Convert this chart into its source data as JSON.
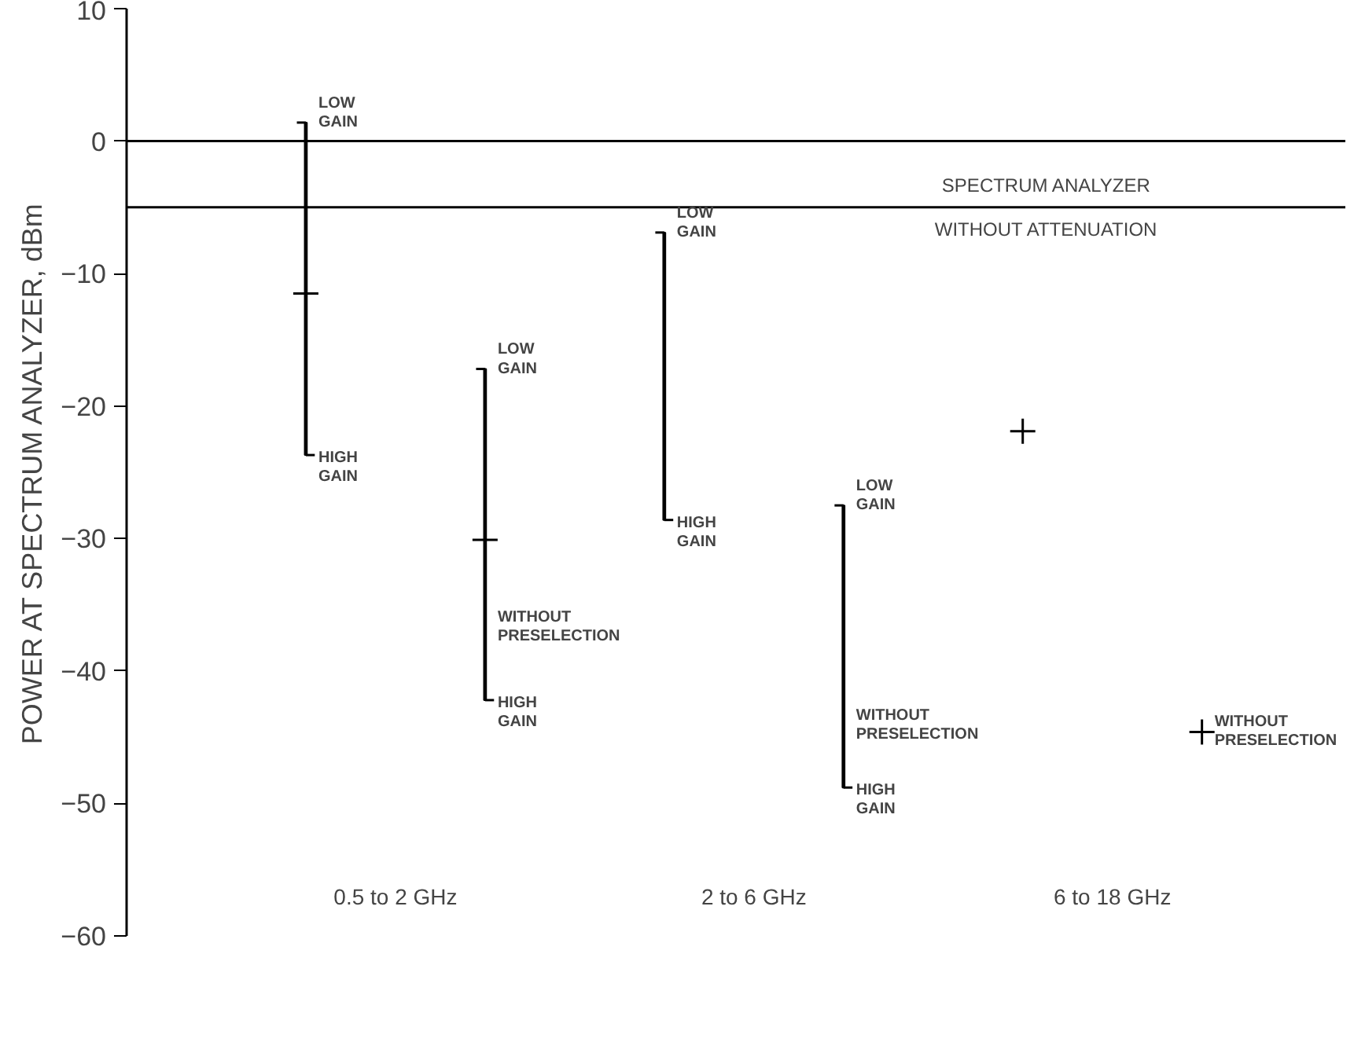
{
  "chart_data": {
    "type": "bar",
    "ylabel": "POWER AT SPECTRUM ANALYZER, dBm",
    "categories": [
      null,
      null,
      null,
      null,
      null,
      null
    ],
    "series": [
      {
        "color": "#000000",
        "base": [
          -23.7,
          null,
          -28.6,
          null,
          null,
          null
        ],
        "values": [
          25.1,
          null,
          21.7,
          null,
          null,
          null
        ]
      },
      {
        "name": "WITHOUT\nPRESELECTION",
        "color": "#000000",
        "base": [
          null,
          -42.2,
          null,
          -48.8,
          null,
          null
        ],
        "values": [
          null,
          25.0,
          null,
          21.3,
          null,
          null
        ]
      },
      {
        "type": "scatter",
        "color": "#000000",
        "marker": "cross",
        "values": [
          -11.5,
          null,
          null,
          null,
          -21.9,
          null
        ]
      },
      {
        "type": "scatter",
        "name": "WITHOUT\nPRESELECTION",
        "color": "#000000",
        "marker": "cross",
        "values": [
          null,
          -30.1,
          null,
          null,
          null,
          -44.6
        ]
      }
    ],
    "ylim": [
      -60,
      10
    ],
    "yticks": [
      -60,
      -50,
      -40,
      -30,
      -20,
      -10,
      0,
      10
    ],
    "grid": false,
    "ref_lines": [
      {
        "axis": "y",
        "value": 0
      },
      {
        "axis": "y",
        "value": -5,
        "label": "SPECTRUM ANALYZER\nWITHOUT ATTENUATION"
      }
    ],
    "annotations": [
      "LOW\nGAIN",
      "HIGH\nGAIN",
      "LOW\nGAIN",
      "HIGH\nGAIN",
      "LOW\nGAIN",
      "HIGH\nGAIN",
      "LOW\nGAIN",
      "HIGH\nGAIN",
      "0.5 to 2 GHz",
      "2 to 6 GHz",
      "6 to 18 GHz"
    ]
  }
}
